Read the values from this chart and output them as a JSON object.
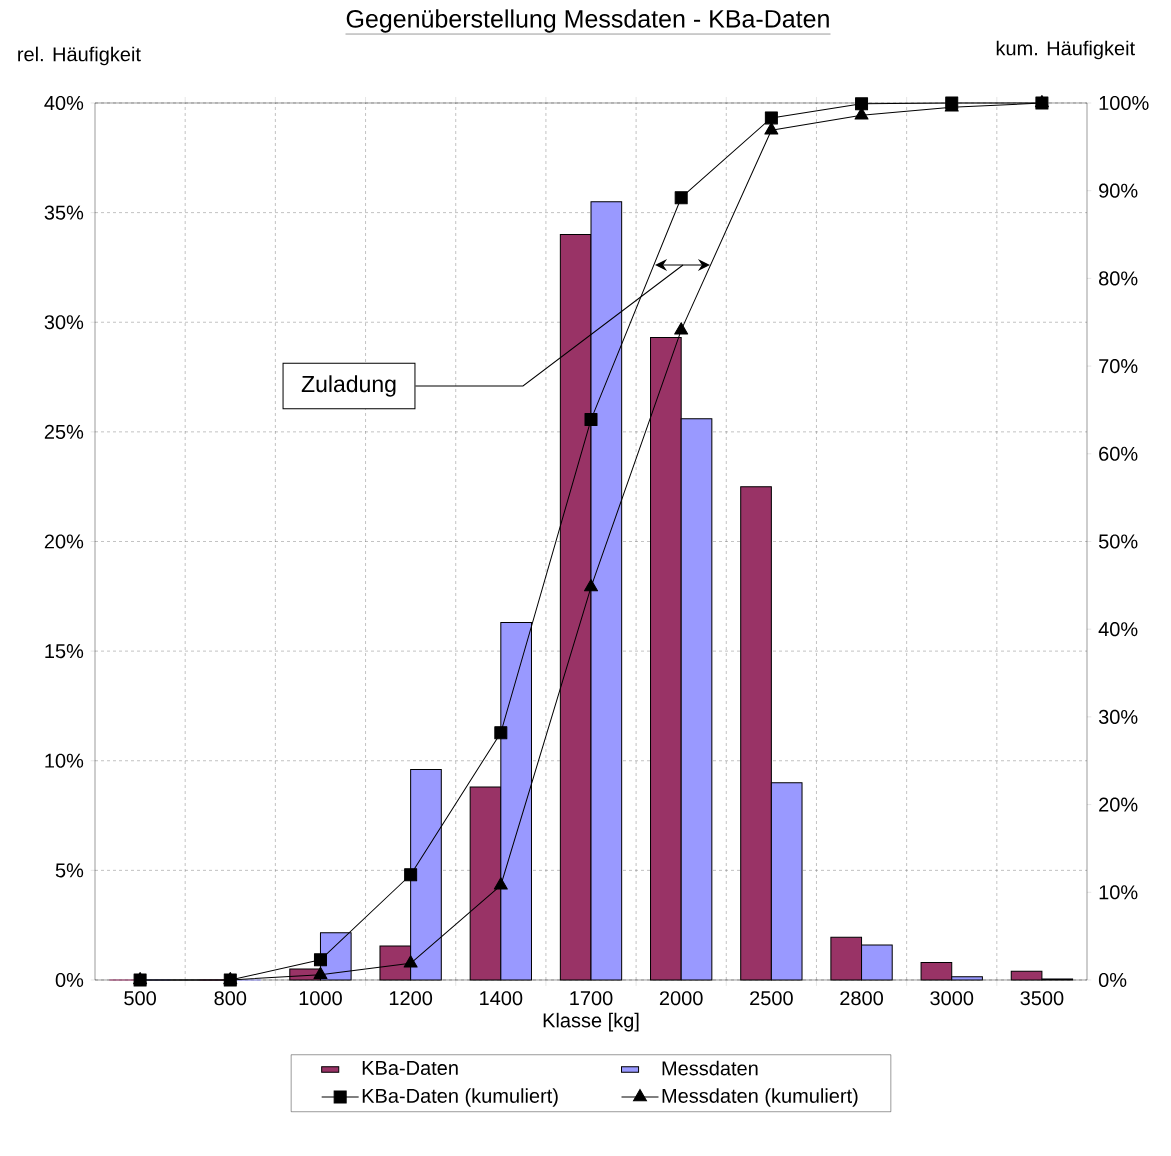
{
  "chart_data": {
    "type": "bar",
    "title": "Gegenüberstellung Messdaten - KBa-Daten",
    "xlabel": "Klasse [kg]",
    "ylabel": "rel. Häufigkeit",
    "y2label": "kum. Häufigkeit",
    "categories": [
      "500",
      "800",
      "1000",
      "1200",
      "1400",
      "1700",
      "2000",
      "2500",
      "2800",
      "3000",
      "3500"
    ],
    "series": [
      {
        "name": "KBa-Daten",
        "color": "#993366",
        "values": [
          0,
          0,
          0.5,
          1.55,
          8.8,
          34.0,
          29.3,
          22.5,
          1.95,
          0.8,
          0.4
        ]
      },
      {
        "name": "Messdaten",
        "color": "#9999ff",
        "values": [
          0,
          0,
          2.15,
          9.6,
          16.3,
          35.5,
          25.6,
          9.0,
          1.6,
          0.15,
          0.05
        ]
      },
      {
        "name": "KBa-Daten (kumuliert)",
        "type": "line",
        "axis": "y2",
        "marker": "square",
        "color": "#000000",
        "values": [
          0,
          0,
          2.3,
          12.0,
          28.2,
          63.9,
          89.2,
          98.3,
          99.9,
          100,
          100
        ]
      },
      {
        "name": "Messdaten (kumuliert)",
        "type": "line",
        "axis": "y2",
        "marker": "triangle",
        "color": "#000000",
        "values": [
          0,
          0,
          0.6,
          1.9,
          10.8,
          44.8,
          74.1,
          96.9,
          98.6,
          99.5,
          100
        ]
      }
    ],
    "ylim": [
      0,
      40
    ],
    "yticks": [
      {
        "value": 0,
        "label": "0%"
      },
      {
        "value": 5,
        "label": "5%"
      },
      {
        "value": 10,
        "label": "10%"
      },
      {
        "value": 15,
        "label": "15%"
      },
      {
        "value": 20,
        "label": "20%"
      },
      {
        "value": 25,
        "label": "25%"
      },
      {
        "value": 30,
        "label": "30%"
      },
      {
        "value": 35,
        "label": "35%"
      },
      {
        "value": 40,
        "label": "40%"
      }
    ],
    "y2lim": [
      0,
      100
    ],
    "y2ticks": [
      {
        "value": 0,
        "label": "0%"
      },
      {
        "value": 10,
        "label": "10%"
      },
      {
        "value": 20,
        "label": "20%"
      },
      {
        "value": 30,
        "label": "30%"
      },
      {
        "value": 40,
        "label": "40%"
      },
      {
        "value": 50,
        "label": "50%"
      },
      {
        "value": 60,
        "label": "60%"
      },
      {
        "value": 70,
        "label": "70%"
      },
      {
        "value": 80,
        "label": "80%"
      },
      {
        "value": 90,
        "label": "90%"
      },
      {
        "value": 100,
        "label": "100%"
      }
    ],
    "annotations": [
      "Zuladung"
    ],
    "grid": true,
    "legend": "bottom"
  }
}
